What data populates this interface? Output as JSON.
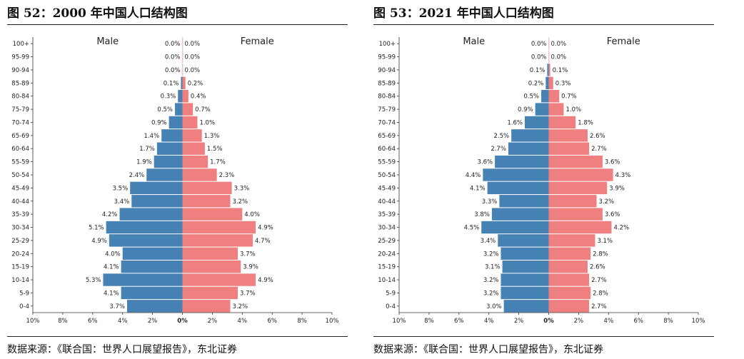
{
  "colors": {
    "male": "#4682b4",
    "female": "#f08080",
    "axis": "#333333",
    "text": "#222222"
  },
  "charts": [
    {
      "figure_title": "图 52：2000 年中国人口结构图",
      "source": "数据来源：《联合国：世界人口展望报告》，东北证券"
    },
    {
      "figure_title": "图 53：2021 年中国人口结构图",
      "source": "数据来源：《联合国：世界人口展望报告》，东北证券"
    }
  ],
  "chart_data": [
    {
      "type": "bar",
      "orientation": "horizontal",
      "subtype": "population-pyramid",
      "title": "图 52：2000 年中国人口结构图",
      "categories": [
        "0-4",
        "5-9",
        "10-14",
        "15-19",
        "20-24",
        "25-29",
        "30-34",
        "35-39",
        "40-44",
        "45-49",
        "50-54",
        "55-59",
        "60-64",
        "65-69",
        "70-74",
        "75-79",
        "80-84",
        "85-89",
        "90-94",
        "95-99",
        "100+"
      ],
      "series": [
        {
          "name": "Male",
          "values": [
            3.7,
            4.1,
            5.3,
            4.1,
            4.0,
            4.9,
            5.1,
            4.2,
            3.4,
            3.5,
            2.4,
            1.9,
            1.7,
            1.4,
            0.9,
            0.5,
            0.3,
            0.1,
            0.0,
            0.0,
            0.0
          ]
        },
        {
          "name": "Female",
          "values": [
            3.2,
            3.7,
            4.9,
            3.9,
            3.7,
            4.7,
            4.9,
            4.0,
            3.2,
            3.3,
            2.3,
            1.7,
            1.5,
            1.3,
            1.0,
            0.7,
            0.4,
            0.2,
            0.0,
            0.0,
            0.0
          ]
        }
      ],
      "xlim": [
        -10,
        10
      ],
      "xticks": [
        "10%",
        "8%",
        "6%",
        "4%",
        "2%",
        "0%",
        "2%",
        "4%",
        "6%",
        "8%",
        "10%"
      ],
      "legend": [
        "Male",
        "Female"
      ]
    },
    {
      "type": "bar",
      "orientation": "horizontal",
      "subtype": "population-pyramid",
      "title": "图 53：2021 年中国人口结构图",
      "categories": [
        "0-4",
        "5-9",
        "10-14",
        "15-19",
        "20-24",
        "25-29",
        "30-34",
        "35-39",
        "40-44",
        "45-49",
        "50-54",
        "55-59",
        "60-64",
        "65-69",
        "70-74",
        "75-79",
        "80-84",
        "85-89",
        "90-94",
        "95-99",
        "100+"
      ],
      "series": [
        {
          "name": "Male",
          "values": [
            3.0,
            3.2,
            3.2,
            3.1,
            3.2,
            3.4,
            4.5,
            3.8,
            3.3,
            4.1,
            4.4,
            3.6,
            2.7,
            2.5,
            1.6,
            0.9,
            0.5,
            0.2,
            0.1,
            0.0,
            0.0
          ]
        },
        {
          "name": "Female",
          "values": [
            2.7,
            2.8,
            2.7,
            2.6,
            2.8,
            3.1,
            4.2,
            3.6,
            3.2,
            3.9,
            4.3,
            3.6,
            2.7,
            2.6,
            1.8,
            1.0,
            0.7,
            0.3,
            0.1,
            0.0,
            0.0
          ]
        }
      ],
      "xlim": [
        -10,
        10
      ],
      "xticks": [
        "10%",
        "8%",
        "6%",
        "4%",
        "2%",
        "0%",
        "2%",
        "4%",
        "6%",
        "8%",
        "10%"
      ],
      "legend": [
        "Male",
        "Female"
      ]
    }
  ]
}
